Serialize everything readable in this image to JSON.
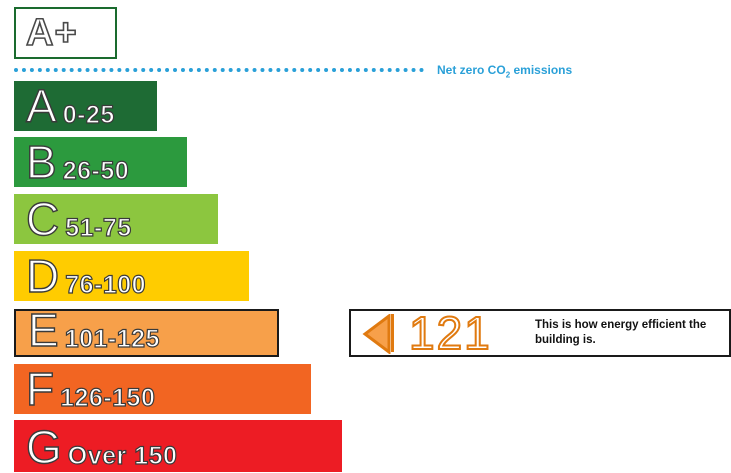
{
  "top_rating": {
    "label": "A+"
  },
  "net_zero": {
    "label_prefix": "Net zero CO",
    "label_sub": "2",
    "label_suffix": " emissions",
    "line_color": "#2aa0d8"
  },
  "bands": [
    {
      "letter": "A",
      "range": "0-25",
      "color": "#1e6b34"
    },
    {
      "letter": "B",
      "range": "26-50",
      "color": "#2c9a3e"
    },
    {
      "letter": "C",
      "range": "51-75",
      "color": "#8cc63f"
    },
    {
      "letter": "D",
      "range": "76-100",
      "color": "#ffcc00"
    },
    {
      "letter": "E",
      "range": "101-125",
      "color": "#f7a04a"
    },
    {
      "letter": "F",
      "range": "126-150",
      "color": "#f26522"
    },
    {
      "letter": "G",
      "range": "Over 150",
      "color": "#ed1c24"
    }
  ],
  "current_rating": {
    "band": "E",
    "value": "121",
    "caption": "This is how energy efficient the building is.",
    "accent_color": "#e07a10"
  }
}
